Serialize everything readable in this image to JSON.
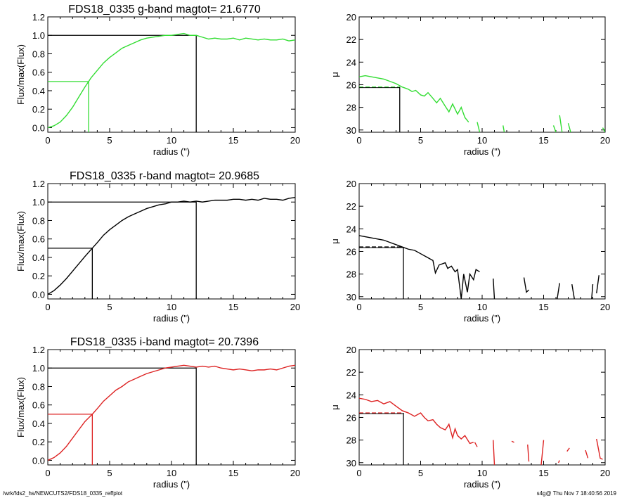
{
  "footer": {
    "path": "/wrk/fds2_hs/NEWCUTS2/FDS18_0335_reffplot",
    "stamp": "s4g@  Thu Nov  7 18:40:56 2019"
  },
  "chart_data": [
    {
      "type": "line",
      "title": "FDS18_0335 g-band  magtot=      21.6770",
      "xlabel": "radius (\")",
      "ylabel": "Flux/max(Flux)",
      "xlim": [
        0,
        20
      ],
      "ylim": [
        -0.05,
        1.2
      ],
      "xticks": [
        0,
        5,
        10,
        15,
        20
      ],
      "yticks": [
        0.0,
        0.2,
        0.4,
        0.6,
        0.8,
        1.0,
        1.2
      ],
      "color": "#33dd33",
      "series": [
        {
          "x": [
            0,
            0.5,
            1,
            1.5,
            2,
            2.5,
            3,
            3.3,
            3.5,
            4,
            4.5,
            5,
            5.5,
            6,
            6.5,
            7,
            7.5,
            8,
            8.5,
            9,
            9.5,
            10,
            10.5,
            11,
            11.5,
            12,
            12.5,
            13,
            13.5,
            14,
            14.5,
            15,
            15.5,
            16,
            16.5,
            17,
            17.5,
            18,
            18.5,
            19,
            19.5,
            20
          ],
          "y": [
            0.0,
            0.02,
            0.06,
            0.13,
            0.22,
            0.33,
            0.44,
            0.5,
            0.54,
            0.62,
            0.7,
            0.76,
            0.81,
            0.86,
            0.89,
            0.92,
            0.95,
            0.97,
            0.98,
            0.99,
            1.0,
            1.0,
            1.01,
            1.02,
            1.0,
            1.0,
            0.98,
            0.96,
            0.97,
            0.96,
            0.96,
            0.97,
            0.95,
            0.97,
            0.96,
            0.95,
            0.96,
            0.95,
            0.95,
            0.96,
            0.94,
            0.95
          ]
        }
      ],
      "ref_lines": {
        "half_radius": 3.3,
        "total_radius": 12.0
      }
    },
    {
      "type": "line",
      "xlabel": "radius (\")",
      "ylabel": "μ",
      "xlim": [
        0,
        20
      ],
      "ylim": [
        20,
        30.2
      ],
      "reversed_y": true,
      "xticks": [
        0,
        5,
        10,
        15,
        20
      ],
      "yticks": [
        20,
        22,
        24,
        26,
        28,
        30
      ],
      "color": "#33dd33",
      "segments": [
        {
          "x": [
            0,
            0.5,
            1,
            1.5,
            2,
            2.5,
            3,
            3.5,
            4,
            4.3,
            4.6,
            5,
            5.3,
            5.6,
            6,
            6.3,
            6.6,
            7,
            7.3,
            7.6,
            8,
            8.3,
            8.6,
            8.9
          ],
          "y": [
            25.3,
            25.2,
            25.3,
            25.4,
            25.5,
            25.7,
            25.9,
            26.2,
            26.4,
            26.6,
            26.5,
            26.9,
            27.0,
            26.7,
            27.2,
            27.6,
            27.2,
            27.9,
            28.4,
            27.7,
            28.6,
            28.0,
            28.9,
            29.3
          ]
        },
        {
          "x": [
            9.6,
            9.8
          ],
          "y": [
            29.3,
            30.2
          ]
        },
        {
          "x": [
            11.7,
            11.8
          ],
          "y": [
            29.6,
            30.2
          ]
        },
        {
          "x": [
            15.8,
            16.0
          ],
          "y": [
            29.6,
            30.2
          ]
        },
        {
          "x": [
            16.3,
            16.5
          ],
          "y": [
            28.7,
            30.2
          ]
        },
        {
          "x": [
            17.0,
            17.2
          ],
          "y": [
            29.4,
            30.2
          ]
        },
        {
          "x": [
            19.8,
            20.0
          ],
          "y": [
            29.8,
            30.2
          ]
        }
      ],
      "ref": {
        "mu_eff": 26.2,
        "r_eff": 3.3
      }
    },
    {
      "type": "line",
      "title": "FDS18_0335 r-band  magtot=      20.9685",
      "xlabel": "radius (\")",
      "ylabel": "Flux/max(Flux)",
      "xlim": [
        0,
        20
      ],
      "ylim": [
        -0.05,
        1.2
      ],
      "xticks": [
        0,
        5,
        10,
        15,
        20
      ],
      "yticks": [
        0.0,
        0.2,
        0.4,
        0.6,
        0.8,
        1.0,
        1.2
      ],
      "color": "#000000",
      "series": [
        {
          "x": [
            0,
            0.5,
            1,
            1.5,
            2,
            2.5,
            3,
            3.6,
            4,
            4.5,
            5,
            5.5,
            6,
            6.5,
            7,
            7.5,
            8,
            8.5,
            9,
            9.5,
            10,
            10.5,
            11,
            11.5,
            12,
            12.5,
            13,
            13.5,
            14,
            14.5,
            15,
            15.5,
            16,
            16.5,
            17,
            17.5,
            18,
            18.5,
            19,
            19.5,
            20
          ],
          "y": [
            0.0,
            0.04,
            0.1,
            0.17,
            0.25,
            0.33,
            0.41,
            0.5,
            0.56,
            0.64,
            0.7,
            0.75,
            0.8,
            0.84,
            0.87,
            0.9,
            0.93,
            0.95,
            0.97,
            0.98,
            1.0,
            1.0,
            1.01,
            1.0,
            1.01,
            1.0,
            1.01,
            1.02,
            1.02,
            1.02,
            1.03,
            1.03,
            1.02,
            1.03,
            1.02,
            1.04,
            1.03,
            1.03,
            1.02,
            1.04,
            1.05
          ]
        }
      ],
      "ref_lines": {
        "half_radius": 3.6,
        "total_radius": 12.0
      }
    },
    {
      "type": "line",
      "xlabel": "radius (\")",
      "ylabel": "μ",
      "xlim": [
        0,
        20
      ],
      "ylim": [
        20,
        30.2
      ],
      "reversed_y": true,
      "xticks": [
        0,
        5,
        10,
        15,
        20
      ],
      "yticks": [
        20,
        22,
        24,
        26,
        28,
        30
      ],
      "color": "#000000",
      "segments": [
        {
          "x": [
            0,
            0.5,
            1,
            1.5,
            2,
            2.5,
            3,
            3.5,
            4,
            4.5,
            5,
            5.5,
            6,
            6.2,
            6.5,
            7,
            7.2,
            7.5,
            7.8,
            8,
            8.3,
            8.5,
            8.8,
            9,
            9.3,
            9.5,
            9.8
          ],
          "y": [
            24.6,
            24.7,
            24.8,
            24.9,
            25.0,
            25.2,
            25.4,
            25.6,
            25.8,
            25.9,
            26.2,
            26.5,
            26.8,
            27.9,
            27.2,
            27.0,
            27.5,
            27.3,
            27.8,
            27.6,
            30.2,
            28.0,
            29.6,
            28.0,
            28.5,
            27.6,
            27.8
          ]
        },
        {
          "x": [
            10.9,
            11.0
          ],
          "y": [
            28.4,
            30.2
          ]
        },
        {
          "x": [
            13.4,
            13.6,
            13.8
          ],
          "y": [
            28.3,
            29.6,
            29.4
          ]
        },
        {
          "x": [
            16.1,
            16.3
          ],
          "y": [
            30.2,
            28.8
          ]
        },
        {
          "x": [
            17.3,
            17.5
          ],
          "y": [
            28.9,
            30.2
          ]
        },
        {
          "x": [
            18.9,
            19.0
          ],
          "y": [
            30.2,
            28.9
          ]
        },
        {
          "x": [
            19.3,
            19.5
          ],
          "y": [
            29.7,
            28.1
          ]
        }
      ],
      "ref": {
        "mu_eff": 25.6,
        "r_eff": 3.6
      }
    },
    {
      "type": "line",
      "title": "FDS18_0335 i-band  magtot=      20.7396",
      "xlabel": "radius (\")",
      "ylabel": "Flux/max(Flux)",
      "xlim": [
        0,
        20
      ],
      "ylim": [
        -0.05,
        1.2
      ],
      "xticks": [
        0,
        5,
        10,
        15,
        20
      ],
      "yticks": [
        0.0,
        0.2,
        0.4,
        0.6,
        0.8,
        1.0,
        1.2
      ],
      "color": "#dd2222",
      "series": [
        {
          "x": [
            0,
            0.5,
            1,
            1.5,
            2,
            2.5,
            3,
            3.6,
            4,
            4.5,
            5,
            5.5,
            6,
            6.5,
            7,
            7.5,
            8,
            8.5,
            9,
            9.5,
            10,
            10.5,
            11,
            11.5,
            12,
            12.5,
            13,
            13.5,
            14,
            14.5,
            15,
            15.5,
            16,
            16.5,
            17,
            17.5,
            18,
            18.5,
            19,
            19.5,
            20
          ],
          "y": [
            0.0,
            0.03,
            0.08,
            0.15,
            0.24,
            0.33,
            0.42,
            0.5,
            0.56,
            0.64,
            0.7,
            0.76,
            0.8,
            0.85,
            0.88,
            0.91,
            0.94,
            0.96,
            0.98,
            1.0,
            1.01,
            1.02,
            1.03,
            1.02,
            1.01,
            1.02,
            1.01,
            1.02,
            1.0,
            0.99,
            0.98,
            0.99,
            0.98,
            0.97,
            0.98,
            0.98,
            0.99,
            0.98,
            1.0,
            1.02,
            1.03
          ]
        }
      ],
      "ref_lines": {
        "half_radius": 3.6,
        "total_radius": 12.0
      }
    },
    {
      "type": "line",
      "xlabel": "radius (\")",
      "ylabel": "μ",
      "xlim": [
        0,
        20
      ],
      "ylim": [
        20,
        30.2
      ],
      "reversed_y": true,
      "xticks": [
        0,
        5,
        10,
        15,
        20
      ],
      "yticks": [
        20,
        22,
        24,
        26,
        28,
        30
      ],
      "color": "#dd2222",
      "segments": [
        {
          "x": [
            0,
            0.5,
            1,
            1.5,
            2,
            2.5,
            3,
            3.5,
            4,
            4.5,
            5,
            5.3,
            5.6,
            6,
            6.3,
            6.6,
            7,
            7.3,
            7.6,
            7.8,
            8,
            8.3,
            8.6,
            9,
            9.3
          ],
          "y": [
            24.3,
            24.4,
            24.6,
            24.5,
            24.8,
            24.6,
            25.0,
            25.4,
            25.6,
            25.9,
            25.6,
            26.0,
            26.3,
            26.2,
            26.6,
            26.9,
            27.1,
            26.6,
            27.8,
            27.0,
            27.6,
            27.9,
            27.6,
            28.3,
            28.2
          ]
        },
        {
          "x": [
            9.4,
            9.6
          ],
          "y": [
            28.2,
            28.6
          ]
        },
        {
          "x": [
            10.9,
            11.0
          ],
          "y": [
            28.0,
            30.2
          ]
        },
        {
          "x": [
            12.4,
            12.6
          ],
          "y": [
            28.1,
            28.2
          ]
        },
        {
          "x": [
            13.7,
            13.8
          ],
          "y": [
            28.4,
            29.9
          ]
        },
        {
          "x": [
            14.8,
            15.0
          ],
          "y": [
            30.2,
            28.0
          ]
        },
        {
          "x": [
            16.2,
            16.3
          ],
          "y": [
            30.0,
            29.8
          ]
        },
        {
          "x": [
            16.9,
            17.1
          ],
          "y": [
            29.0,
            28.7
          ]
        },
        {
          "x": [
            18.4,
            18.6
          ],
          "y": [
            28.9,
            29.6
          ]
        },
        {
          "x": [
            19.3,
            19.6,
            19.8
          ],
          "y": [
            27.9,
            29.6,
            29.7
          ]
        }
      ],
      "ref": {
        "mu_eff": 25.6,
        "r_eff": 3.6
      }
    }
  ]
}
